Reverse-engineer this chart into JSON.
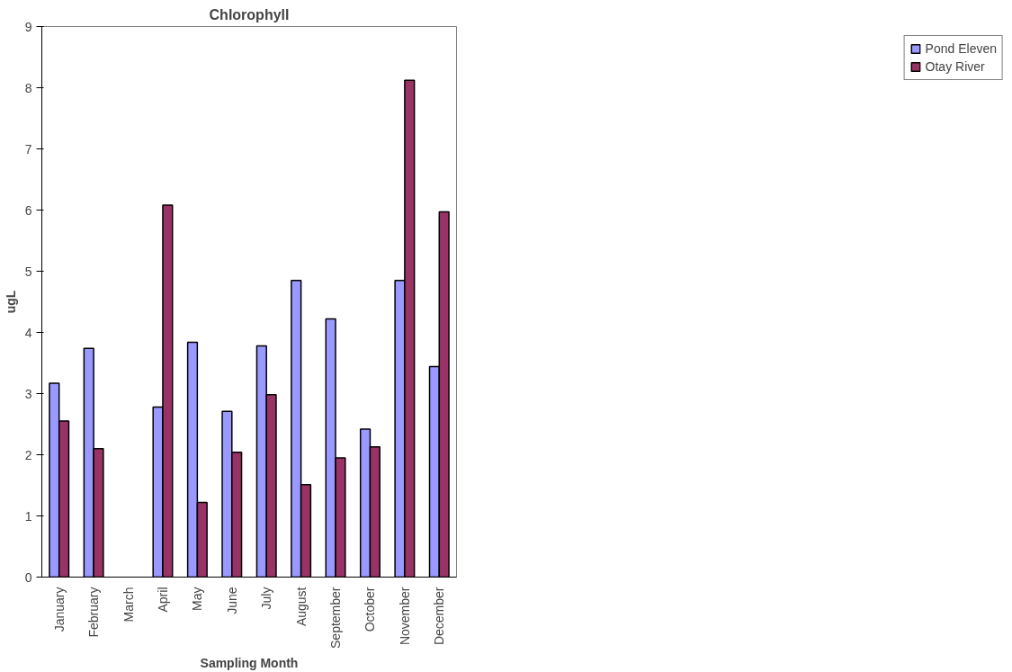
{
  "chart_data": {
    "type": "bar",
    "title": "Chlorophyll",
    "xlabel": "Sampling Month",
    "ylabel": "ugL",
    "categories": [
      "January",
      "February",
      "March",
      "April",
      "May",
      "June",
      "July",
      "August",
      "September",
      "October",
      "November",
      "December"
    ],
    "series": [
      {
        "name": "Pond Eleven",
        "color": "#9999ff",
        "values": [
          3.17,
          3.74,
          null,
          2.78,
          3.84,
          2.71,
          3.78,
          4.85,
          4.22,
          2.42,
          4.85,
          3.44
        ]
      },
      {
        "name": "Otay River",
        "color": "#993366",
        "values": [
          2.55,
          2.1,
          null,
          6.08,
          1.22,
          2.04,
          2.98,
          1.51,
          1.95,
          2.13,
          8.12,
          5.97
        ]
      }
    ],
    "ylim": [
      0,
      9
    ],
    "yticks": [
      0,
      1,
      2,
      3,
      4,
      5,
      6,
      7,
      8,
      9
    ],
    "grid": false,
    "legend": "right"
  }
}
